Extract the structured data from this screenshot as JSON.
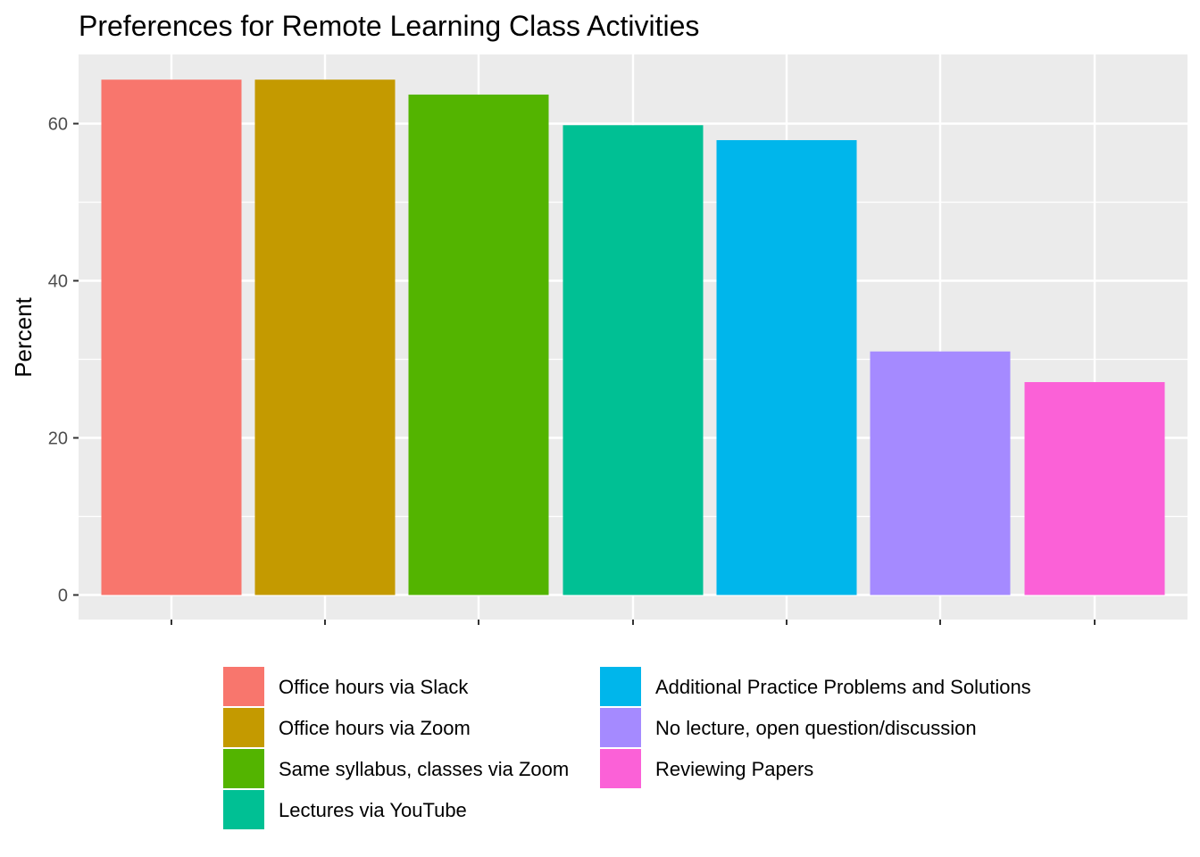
{
  "chart_data": {
    "type": "bar",
    "title": "Preferences for Remote Learning Class Activities",
    "xlabel": "",
    "ylabel": "Percent",
    "ylim": [
      0,
      68.8
    ],
    "yticks": [
      0,
      20,
      40,
      60
    ],
    "grid": true,
    "legend_position": "bottom",
    "categories": [
      "Office hours via Slack",
      "Office hours via Zoom",
      "Same syllabus, classes via Zoom",
      "Lectures via YouTube",
      "Additional Practice Problems and Solutions",
      "No lecture, open question/discussion",
      "Reviewing Papers"
    ],
    "values": [
      65.6,
      65.6,
      63.7,
      59.8,
      57.9,
      31.0,
      27.1
    ],
    "colors": [
      "#F8766D",
      "#C49A00",
      "#53B400",
      "#00C094",
      "#00B6EB",
      "#A58AFF",
      "#FB61D7"
    ],
    "legend": [
      "Office hours via Slack",
      "Office hours via Zoom",
      "Same syllabus, classes via Zoom",
      "Lectures via YouTube",
      "Additional Practice Problems and Solutions",
      "No lecture, open question/discussion",
      "Reviewing Papers"
    ]
  }
}
